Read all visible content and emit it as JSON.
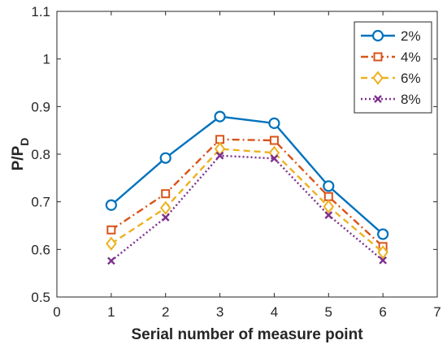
{
  "chart_data": {
    "type": "line",
    "x": [
      1,
      2,
      3,
      4,
      5,
      6
    ],
    "xlim": [
      0,
      7
    ],
    "ylim": [
      0.5,
      1.1
    ],
    "xticks": [
      "0",
      "1",
      "2",
      "3",
      "4",
      "5",
      "6",
      "7"
    ],
    "yticks": [
      "0.5",
      "0.6",
      "0.7",
      "0.8",
      "0.9",
      "1",
      "1.1"
    ],
    "xlabel": "Serial number of measure point",
    "ylabel_main": "P/P",
    "ylabel_sub": "D",
    "legend_position": "top-right",
    "grid": false,
    "series": [
      {
        "name": "2%",
        "values": [
          0.693,
          0.792,
          0.879,
          0.865,
          0.733,
          0.632
        ],
        "color": "#0072BD",
        "marker": "circle",
        "dash": "solid"
      },
      {
        "name": "4%",
        "values": [
          0.641,
          0.717,
          0.831,
          0.829,
          0.711,
          0.606
        ],
        "color": "#D95319",
        "marker": "square",
        "dash": "dashdot"
      },
      {
        "name": "6%",
        "values": [
          0.612,
          0.687,
          0.811,
          0.803,
          0.69,
          0.594
        ],
        "color": "#EDB120",
        "marker": "diamond",
        "dash": "dashed"
      },
      {
        "name": "8%",
        "values": [
          0.576,
          0.667,
          0.797,
          0.791,
          0.672,
          0.577
        ],
        "color": "#7E2F8E",
        "marker": "x",
        "dash": "dotted"
      }
    ]
  }
}
